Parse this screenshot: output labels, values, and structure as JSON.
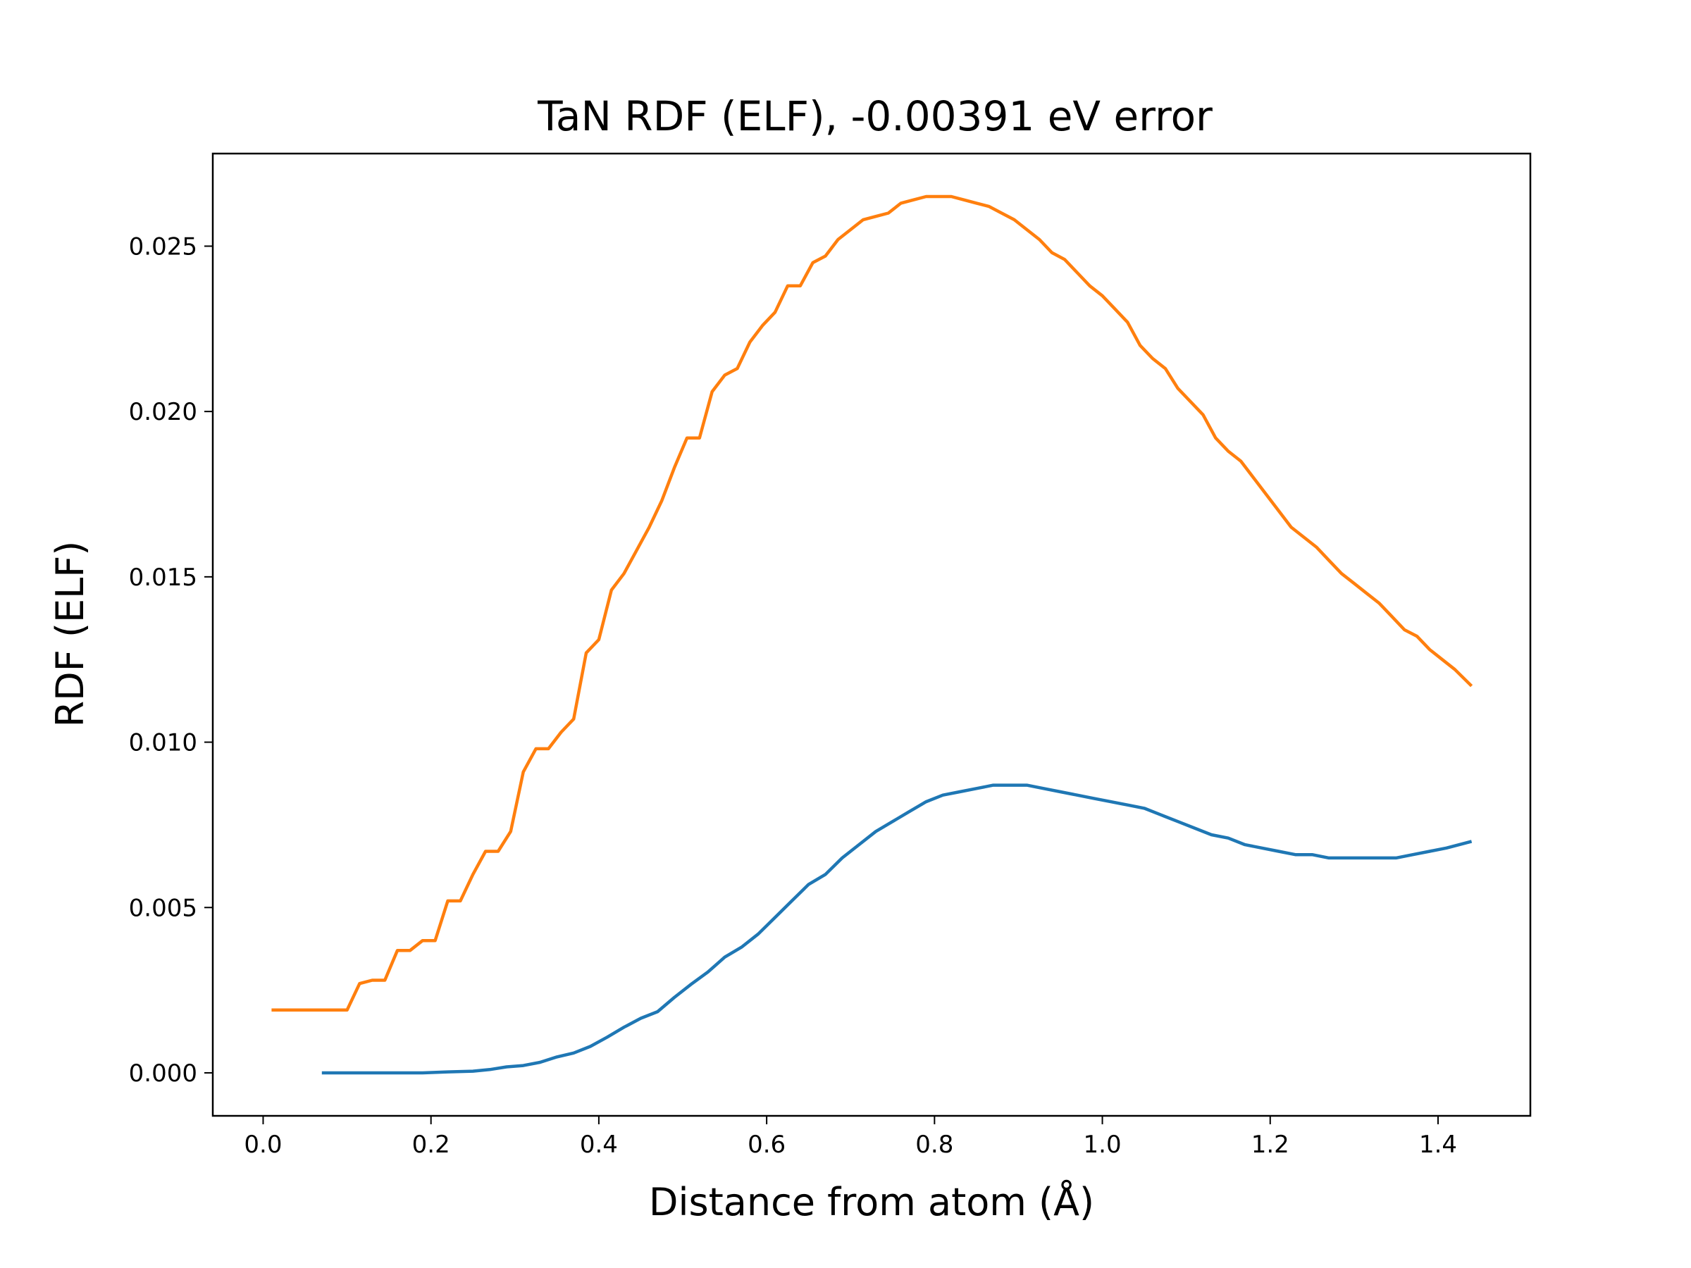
{
  "chart_data": {
    "type": "line",
    "title": "TaN RDF (ELF), -0.00391 eV error",
    "xlabel": "Distance from atom (Å)",
    "ylabel": "RDF (ELF)",
    "xlim": [
      -0.06,
      1.51
    ],
    "ylim": [
      -0.0013,
      0.0278
    ],
    "xticks": [
      0.0,
      0.2,
      0.4,
      0.6,
      0.8,
      1.0,
      1.2,
      1.4
    ],
    "xtick_labels": [
      "0.0",
      "0.2",
      "0.4",
      "0.6",
      "0.8",
      "1.0",
      "1.2",
      "1.4"
    ],
    "yticks": [
      0.0,
      0.005,
      0.01,
      0.015,
      0.02,
      0.025
    ],
    "ytick_labels": [
      "0.000",
      "0.005",
      "0.010",
      "0.015",
      "0.020",
      "0.025"
    ],
    "grid": false,
    "legend": "none",
    "series": [
      {
        "color": "#1f77b4",
        "x": [
          0.07,
          0.1,
          0.13,
          0.16,
          0.19,
          0.22,
          0.25,
          0.27,
          0.29,
          0.31,
          0.33,
          0.35,
          0.37,
          0.39,
          0.41,
          0.43,
          0.45,
          0.47,
          0.49,
          0.51,
          0.53,
          0.55,
          0.57,
          0.59,
          0.61,
          0.63,
          0.65,
          0.67,
          0.69,
          0.71,
          0.73,
          0.75,
          0.77,
          0.79,
          0.81,
          0.83,
          0.85,
          0.87,
          0.89,
          0.91,
          0.93,
          0.95,
          0.97,
          0.99,
          1.01,
          1.03,
          1.05,
          1.07,
          1.09,
          1.11,
          1.13,
          1.15,
          1.17,
          1.19,
          1.21,
          1.23,
          1.25,
          1.27,
          1.29,
          1.31,
          1.33,
          1.35,
          1.37,
          1.39,
          1.41,
          1.44
        ],
        "y": [
          0.0,
          0.0,
          0.0,
          0.0,
          0.0,
          3e-05,
          5e-05,
          0.0001,
          0.00018,
          0.00022,
          0.00032,
          0.00048,
          0.0006,
          0.0008,
          0.00108,
          0.00138,
          0.00165,
          0.00185,
          0.00228,
          0.00268,
          0.00305,
          0.0035,
          0.0038,
          0.0042,
          0.0047,
          0.0052,
          0.0057,
          0.006,
          0.0065,
          0.0069,
          0.0073,
          0.0076,
          0.0079,
          0.0082,
          0.0084,
          0.0085,
          0.0086,
          0.0087,
          0.0087,
          0.0087,
          0.0086,
          0.0085,
          0.0084,
          0.0083,
          0.0082,
          0.0081,
          0.008,
          0.0078,
          0.0076,
          0.0074,
          0.0072,
          0.0071,
          0.0069,
          0.0068,
          0.0067,
          0.0066,
          0.0066,
          0.0065,
          0.0065,
          0.0065,
          0.0065,
          0.0065,
          0.0066,
          0.0067,
          0.0068,
          0.007
        ]
      },
      {
        "color": "#ff7f0e",
        "x": [
          0.01,
          0.04,
          0.07,
          0.1,
          0.115,
          0.13,
          0.145,
          0.16,
          0.175,
          0.19,
          0.205,
          0.22,
          0.235,
          0.25,
          0.265,
          0.28,
          0.295,
          0.31,
          0.325,
          0.34,
          0.355,
          0.37,
          0.385,
          0.4,
          0.415,
          0.43,
          0.445,
          0.46,
          0.475,
          0.49,
          0.505,
          0.52,
          0.535,
          0.55,
          0.565,
          0.58,
          0.595,
          0.61,
          0.625,
          0.64,
          0.655,
          0.67,
          0.685,
          0.7,
          0.715,
          0.73,
          0.745,
          0.76,
          0.775,
          0.79,
          0.805,
          0.82,
          0.835,
          0.85,
          0.865,
          0.88,
          0.895,
          0.91,
          0.925,
          0.94,
          0.955,
          0.97,
          0.985,
          1.0,
          1.015,
          1.03,
          1.045,
          1.06,
          1.075,
          1.09,
          1.105,
          1.12,
          1.135,
          1.15,
          1.165,
          1.18,
          1.195,
          1.21,
          1.225,
          1.24,
          1.255,
          1.27,
          1.285,
          1.3,
          1.315,
          1.33,
          1.345,
          1.36,
          1.375,
          1.39,
          1.405,
          1.42,
          1.44
        ],
        "y": [
          0.0019,
          0.0019,
          0.0019,
          0.0019,
          0.0027,
          0.0028,
          0.0028,
          0.0037,
          0.0037,
          0.004,
          0.004,
          0.0052,
          0.0052,
          0.006,
          0.0067,
          0.0067,
          0.0073,
          0.0091,
          0.0098,
          0.0098,
          0.0103,
          0.0107,
          0.0127,
          0.0131,
          0.0146,
          0.0151,
          0.0158,
          0.0165,
          0.0173,
          0.0183,
          0.0192,
          0.0192,
          0.0206,
          0.0211,
          0.0213,
          0.0221,
          0.0226,
          0.023,
          0.0238,
          0.0238,
          0.0245,
          0.0247,
          0.0252,
          0.0255,
          0.0258,
          0.0259,
          0.026,
          0.0263,
          0.0264,
          0.0265,
          0.0265,
          0.0265,
          0.0264,
          0.0263,
          0.0262,
          0.026,
          0.0258,
          0.0255,
          0.0252,
          0.0248,
          0.0246,
          0.0242,
          0.0238,
          0.0235,
          0.0231,
          0.0227,
          0.022,
          0.0216,
          0.0213,
          0.0207,
          0.0203,
          0.0199,
          0.0192,
          0.0188,
          0.0185,
          0.018,
          0.0175,
          0.017,
          0.0165,
          0.0162,
          0.0159,
          0.0155,
          0.0151,
          0.0148,
          0.0145,
          0.0142,
          0.0138,
          0.0134,
          0.0132,
          0.0128,
          0.0125,
          0.0122,
          0.0117
        ]
      }
    ]
  }
}
